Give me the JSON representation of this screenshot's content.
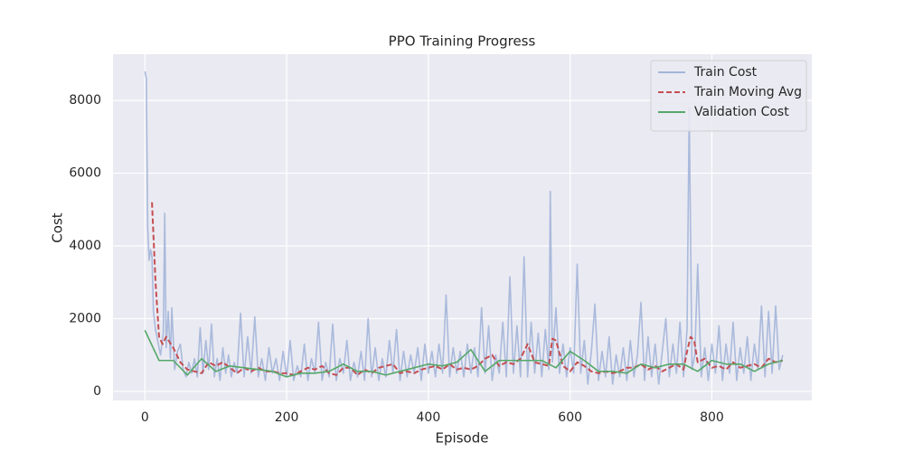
{
  "chart_data": {
    "type": "line",
    "title": "PPO Training Progress",
    "x_label": "Episode",
    "y_label": "Cost",
    "xlim": [
      -45,
      941
    ],
    "ylim": [
      -250,
      9270
    ],
    "xticks": [
      0,
      200,
      400,
      600,
      800
    ],
    "yticks": [
      0,
      2000,
      4000,
      6000,
      8000
    ],
    "grid": true,
    "legend": "upper right",
    "series": [
      {
        "name": "Train Cost",
        "color": "#a3b5d9",
        "dash": false,
        "x": [
          0,
          2,
          4,
          6,
          8,
          10,
          12,
          15,
          18,
          22,
          26,
          28,
          30,
          33,
          36,
          38,
          42,
          46,
          50,
          54,
          58,
          62,
          66,
          70,
          74,
          78,
          82,
          86,
          90,
          94,
          98,
          102,
          106,
          110,
          114,
          118,
          122,
          126,
          130,
          135,
          140,
          145,
          150,
          155,
          160,
          165,
          170,
          175,
          180,
          185,
          190,
          195,
          200,
          205,
          210,
          215,
          220,
          225,
          230,
          235,
          240,
          245,
          250,
          255,
          260,
          265,
          270,
          275,
          280,
          285,
          290,
          295,
          300,
          305,
          310,
          315,
          320,
          325,
          330,
          335,
          340,
          345,
          350,
          355,
          360,
          365,
          370,
          375,
          380,
          385,
          390,
          395,
          400,
          405,
          410,
          415,
          420,
          425,
          430,
          435,
          440,
          445,
          450,
          455,
          460,
          465,
          470,
          475,
          480,
          485,
          490,
          495,
          500,
          505,
          510,
          515,
          520,
          525,
          530,
          535,
          540,
          545,
          550,
          555,
          560,
          565,
          570,
          572,
          575,
          580,
          585,
          590,
          595,
          600,
          605,
          610,
          615,
          620,
          625,
          630,
          635,
          640,
          645,
          650,
          655,
          660,
          665,
          670,
          675,
          680,
          685,
          690,
          695,
          700,
          705,
          710,
          715,
          720,
          725,
          730,
          735,
          740,
          745,
          750,
          755,
          760,
          765,
          768,
          772,
          776,
          780,
          785,
          790,
          795,
          800,
          805,
          810,
          815,
          820,
          825,
          830,
          835,
          840,
          845,
          850,
          855,
          860,
          865,
          870,
          875,
          880,
          885,
          890,
          895,
          900
        ],
        "values": [
          8800,
          8600,
          4500,
          3600,
          3900,
          3700,
          2200,
          1700,
          1400,
          1000,
          1600,
          4900,
          1200,
          2200,
          900,
          2300,
          600,
          1100,
          1300,
          600,
          400,
          800,
          500,
          900,
          400,
          1750,
          500,
          1400,
          600,
          1850,
          400,
          900,
          300,
          1200,
          500,
          1000,
          400,
          800,
          500,
          2150,
          400,
          1500,
          500,
          2050,
          400,
          900,
          300,
          1200,
          500,
          900,
          300,
          1100,
          400,
          1400,
          300,
          700,
          400,
          1300,
          300,
          900,
          500,
          1900,
          300,
          800,
          400,
          1850,
          300,
          900,
          500,
          1400,
          300,
          800,
          400,
          1100,
          300,
          2000,
          400,
          1200,
          300,
          900,
          400,
          1400,
          500,
          1700,
          300,
          1100,
          400,
          1000,
          500,
          1200,
          300,
          1300,
          500,
          1100,
          400,
          1300,
          500,
          2650,
          400,
          1200,
          500,
          1100,
          400,
          1300,
          500,
          1200,
          400,
          2300,
          500,
          1800,
          300,
          1000,
          500,
          1900,
          400,
          3150,
          500,
          1800,
          400,
          3700,
          400,
          1900,
          500,
          1600,
          400,
          1700,
          600,
          5500,
          800,
          2300,
          500,
          1300,
          400,
          1200,
          500,
          3500,
          500,
          1400,
          200,
          1100,
          2400,
          300,
          1100,
          400,
          1500,
          200,
          1000,
          400,
          1200,
          300,
          1400,
          400,
          1000,
          2450,
          300,
          1500,
          400,
          1300,
          200,
          1100,
          2000,
          400,
          1300,
          500,
          1900,
          400,
          1700,
          7800,
          600,
          1000,
          3500,
          400,
          1200,
          300,
          1300,
          500,
          1800,
          300,
          1300,
          500,
          1900,
          300,
          1200,
          500,
          1500,
          300,
          1300,
          600,
          2350,
          400,
          2200,
          500,
          2350,
          600,
          1000
        ]
      },
      {
        "name": "Train Moving Avg",
        "color": "#c44e52",
        "dash": true,
        "x": [
          10,
          15,
          20,
          25,
          30,
          40,
          50,
          60,
          70,
          80,
          90,
          100,
          110,
          120,
          130,
          140,
          150,
          160,
          170,
          180,
          190,
          200,
          210,
          220,
          230,
          240,
          250,
          260,
          270,
          280,
          290,
          300,
          310,
          320,
          330,
          340,
          350,
          360,
          370,
          380,
          390,
          400,
          410,
          420,
          430,
          440,
          450,
          460,
          470,
          480,
          490,
          500,
          510,
          520,
          530,
          540,
          550,
          560,
          570,
          575,
          580,
          590,
          600,
          610,
          620,
          630,
          640,
          650,
          660,
          670,
          680,
          690,
          700,
          710,
          720,
          730,
          740,
          750,
          760,
          765,
          770,
          775,
          780,
          790,
          800,
          810,
          820,
          830,
          840,
          850,
          860,
          870,
          880,
          890,
          900
        ],
        "values": [
          5200,
          3000,
          1500,
          1300,
          1500,
          1200,
          800,
          600,
          550,
          500,
          800,
          700,
          800,
          650,
          500,
          650,
          550,
          650,
          550,
          550,
          500,
          500,
          450,
          550,
          650,
          600,
          700,
          500,
          450,
          650,
          650,
          450,
          600,
          500,
          650,
          700,
          750,
          500,
          550,
          500,
          600,
          650,
          700,
          600,
          750,
          600,
          650,
          600,
          700,
          900,
          1000,
          700,
          800,
          750,
          900,
          1300,
          800,
          750,
          700,
          1450,
          1400,
          700,
          550,
          800,
          700,
          550,
          500,
          550,
          500,
          550,
          650,
          650,
          750,
          600,
          700,
          550,
          650,
          750,
          600,
          1100,
          1500,
          1400,
          800,
          900,
          650,
          700,
          600,
          800,
          650,
          700,
          750,
          650,
          900,
          800,
          850
        ]
      },
      {
        "name": "Validation Cost",
        "color": "#55a868",
        "dash": false,
        "x": [
          0,
          20,
          40,
          60,
          80,
          100,
          120,
          140,
          160,
          180,
          200,
          220,
          240,
          260,
          280,
          300,
          320,
          340,
          360,
          380,
          400,
          420,
          440,
          460,
          480,
          500,
          520,
          540,
          560,
          580,
          600,
          620,
          640,
          660,
          680,
          700,
          720,
          740,
          760,
          780,
          800,
          820,
          840,
          860,
          880,
          900
        ],
        "values": [
          1680,
          850,
          850,
          450,
          900,
          550,
          700,
          650,
          600,
          550,
          400,
          500,
          500,
          550,
          750,
          550,
          550,
          450,
          550,
          650,
          750,
          700,
          800,
          1150,
          550,
          850,
          850,
          850,
          850,
          650,
          1100,
          850,
          550,
          550,
          500,
          750,
          650,
          750,
          750,
          550,
          850,
          750,
          750,
          550,
          750,
          850
        ]
      }
    ]
  }
}
